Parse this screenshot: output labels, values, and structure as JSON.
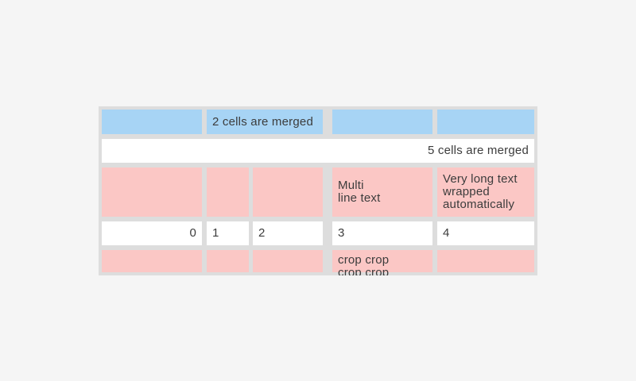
{
  "page": {
    "background_color": "#f5f5f5"
  },
  "table": {
    "colors": {
      "header_blue": "#a7d4f5",
      "highlight_pink": "#fbc7c5",
      "cell_white": "#ffffff",
      "frame_gray": "#dddddd",
      "text": "#3c3c3c"
    },
    "row1": {
      "c1": "",
      "merged2": "2 cells are merged",
      "c4": "",
      "c5": ""
    },
    "row2": {
      "merged5": "5 cells are merged"
    },
    "row3": {
      "c1": "",
      "c2": "",
      "c3": "",
      "c4": "Multi\nline text",
      "c5": "Very long text\nwrapped\nautomatically"
    },
    "row4": {
      "c1": "0",
      "c2": "1",
      "c3": "2",
      "c4": "3",
      "c5": "4"
    },
    "row5": {
      "c1": "",
      "c2": "",
      "c3": "",
      "c4": "crop crop\ncrop crop",
      "c5": ""
    }
  }
}
